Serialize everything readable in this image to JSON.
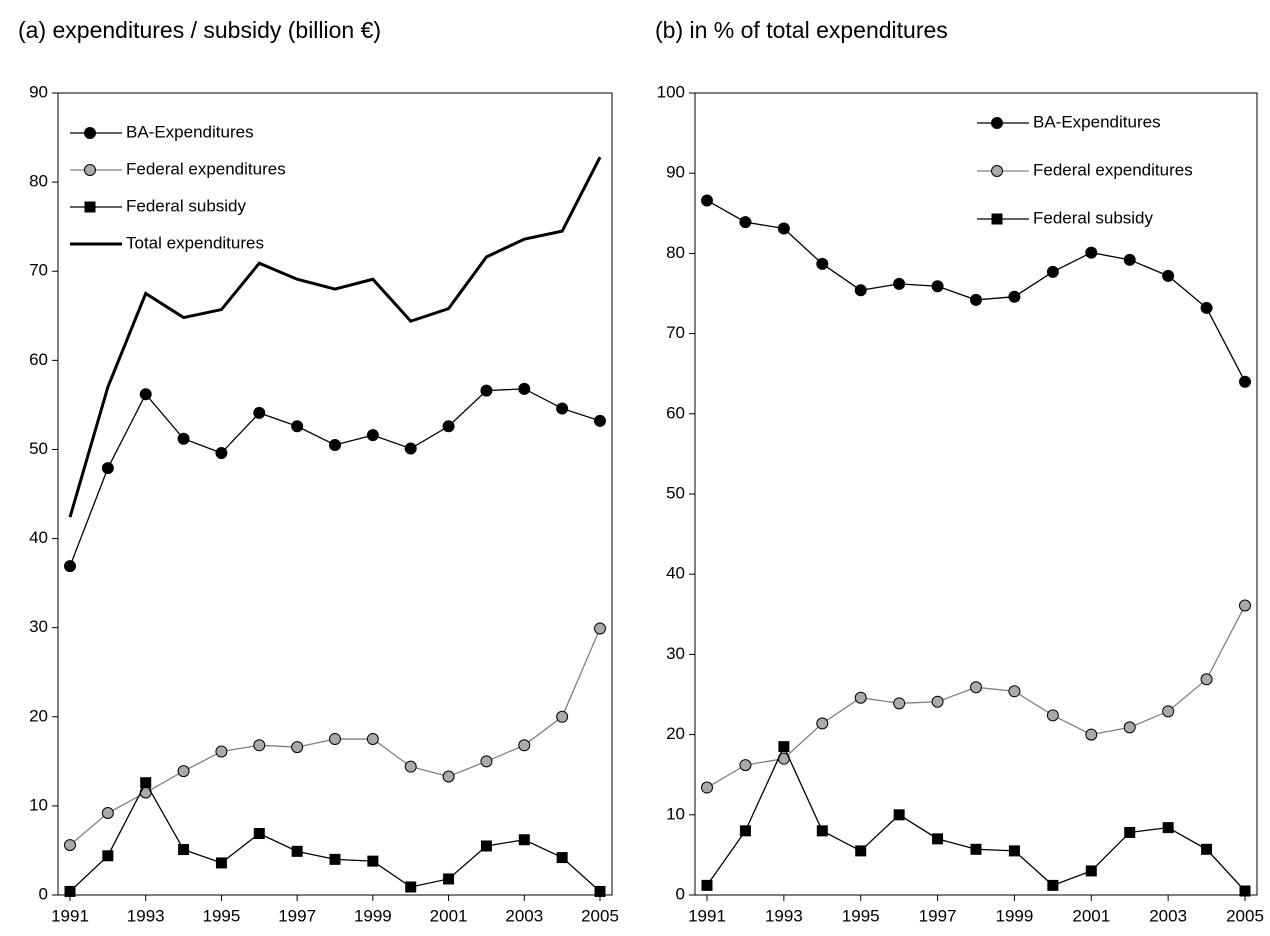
{
  "chart_data": [
    {
      "type": "line",
      "title": "(a)  expenditures / subsidy (billion €)",
      "x": [
        1991,
        1992,
        1993,
        1994,
        1995,
        1996,
        1997,
        1998,
        1999,
        2000,
        2001,
        2002,
        2003,
        2004,
        2005
      ],
      "xlim": [
        1991,
        2005
      ],
      "xticks": [
        1991,
        1993,
        1995,
        1997,
        1999,
        2001,
        2003,
        2005
      ],
      "ylim": [
        0,
        90
      ],
      "yticks": [
        0,
        10,
        20,
        30,
        40,
        50,
        60,
        70,
        80,
        90
      ],
      "grid": false,
      "legend": "upper left",
      "series": [
        {
          "name": "BA-Expenditures",
          "color": "#000000",
          "marker": "circle",
          "values": [
            36.9,
            47.9,
            56.2,
            51.2,
            49.6,
            54.1,
            52.6,
            50.5,
            51.6,
            50.1,
            52.6,
            56.6,
            56.8,
            54.6,
            53.2
          ]
        },
        {
          "name": "Federal expenditures",
          "color": "#808080",
          "marker": "circle",
          "values": [
            5.6,
            9.2,
            11.5,
            13.9,
            16.1,
            16.8,
            16.6,
            17.5,
            17.5,
            14.4,
            13.3,
            15.0,
            16.8,
            20.0,
            29.9
          ]
        },
        {
          "name": "Federal subsidy",
          "color": "#000000",
          "marker": "square",
          "values": [
            0.4,
            4.4,
            12.6,
            5.1,
            3.6,
            6.9,
            4.9,
            4.0,
            3.8,
            0.9,
            1.8,
            5.5,
            6.2,
            4.2,
            0.4
          ]
        },
        {
          "name": "Total expenditures",
          "color": "#000000",
          "marker": "none",
          "line_width": 3,
          "values": [
            42.4,
            57.0,
            67.5,
            64.8,
            65.7,
            70.9,
            69.1,
            68.0,
            69.1,
            64.4,
            65.8,
            71.6,
            73.6,
            74.5,
            82.8
          ]
        }
      ]
    },
    {
      "type": "line",
      "title": "(b) in % of total expenditures",
      "x": [
        1991,
        1992,
        1993,
        1994,
        1995,
        1996,
        1997,
        1998,
        1999,
        2000,
        2001,
        2002,
        2003,
        2004,
        2005
      ],
      "xlim": [
        1991,
        2005
      ],
      "xticks": [
        1991,
        1993,
        1995,
        1997,
        1999,
        2001,
        2003,
        2005
      ],
      "ylim": [
        0,
        100
      ],
      "yticks": [
        0,
        10,
        20,
        30,
        40,
        50,
        60,
        70,
        80,
        90,
        100
      ],
      "grid": false,
      "legend": "upper right",
      "series": [
        {
          "name": "BA-Expenditures",
          "color": "#000000",
          "marker": "circle",
          "values": [
            86.6,
            83.9,
            83.1,
            78.7,
            75.4,
            76.2,
            75.9,
            74.2,
            74.6,
            77.7,
            80.1,
            79.2,
            77.2,
            73.2,
            64.0
          ]
        },
        {
          "name": "Federal expenditures",
          "color": "#808080",
          "marker": "circle",
          "values": [
            13.4,
            16.2,
            17.0,
            21.4,
            24.6,
            23.9,
            24.1,
            25.9,
            25.4,
            22.4,
            20.0,
            20.9,
            22.9,
            26.9,
            36.1
          ]
        },
        {
          "name": "Federal subsidy",
          "color": "#000000",
          "marker": "square",
          "values": [
            1.2,
            8.0,
            18.5,
            8.0,
            5.5,
            10.0,
            7.0,
            5.7,
            5.5,
            1.2,
            3.0,
            7.8,
            8.4,
            5.7,
            0.5
          ]
        }
      ]
    }
  ]
}
